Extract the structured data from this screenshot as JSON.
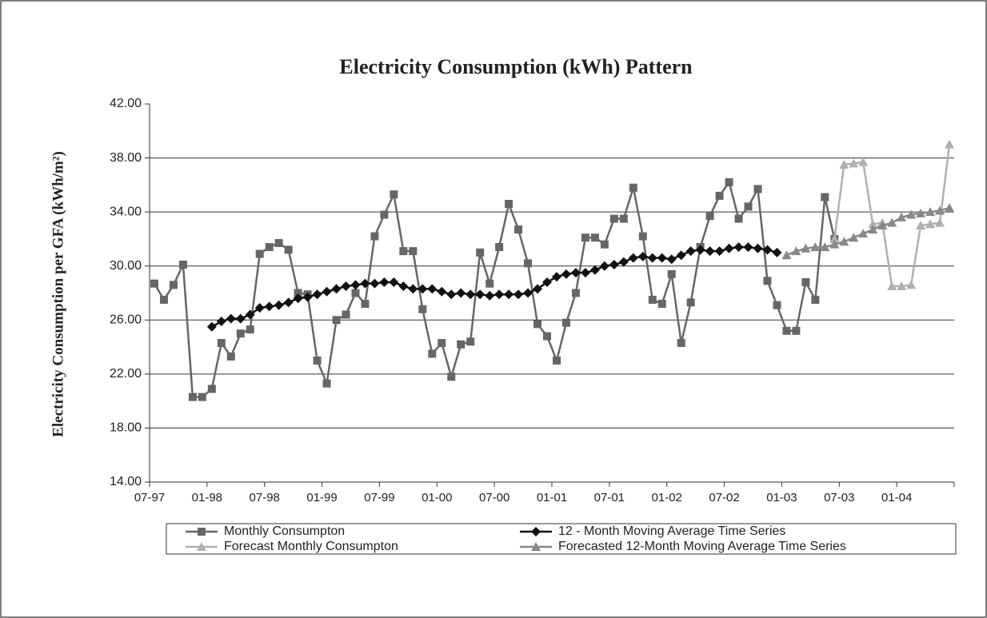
{
  "chart_data": {
    "type": "line",
    "title": "Electricity Consumption (kWh) Pattern",
    "y_label": "Electricity Consumption per GFA (kWh/m²)",
    "categories": [
      "07-97",
      null,
      null,
      null,
      null,
      null,
      "01-98",
      null,
      null,
      null,
      null,
      null,
      "07-98",
      null,
      null,
      null,
      null,
      null,
      "01-99",
      null,
      null,
      null,
      null,
      null,
      "07-99",
      null,
      null,
      null,
      null,
      null,
      "01-00",
      null,
      null,
      null,
      null,
      null,
      "07-00",
      null,
      null,
      null,
      null,
      null,
      "01-01",
      null,
      null,
      null,
      null,
      null,
      "07-01",
      null,
      null,
      null,
      null,
      null,
      "01-02",
      null,
      null,
      null,
      null,
      null,
      "07-02",
      null,
      null,
      null,
      null,
      null,
      "01-03",
      null,
      null,
      null,
      null,
      null,
      "07-03",
      null,
      null,
      null,
      null,
      null,
      "01-04",
      null,
      null,
      null,
      null,
      null
    ],
    "series": [
      {
        "name": "Monthly Consumpton",
        "color": "#666666",
        "marker": "square",
        "values": [
          28.7,
          27.5,
          28.6,
          30.1,
          20.3,
          20.3,
          20.9,
          24.3,
          23.3,
          25.0,
          25.3,
          30.9,
          31.4,
          31.7,
          31.2,
          28.0,
          27.9,
          23.0,
          21.3,
          26.0,
          26.4,
          28.0,
          27.2,
          32.2,
          33.8,
          35.3,
          31.1,
          31.1,
          26.8,
          23.5,
          24.3,
          21.8,
          24.2,
          24.4,
          31.0,
          28.7,
          31.4,
          34.6,
          32.7,
          30.2,
          25.7,
          24.8,
          23.0,
          25.8,
          28.0,
          32.1,
          32.1,
          31.6,
          33.5,
          33.5,
          35.8,
          32.2,
          27.5,
          27.2,
          29.4,
          24.3,
          27.3,
          31.4,
          33.7,
          35.2,
          36.2,
          33.5,
          34.4,
          35.7,
          28.9,
          27.1,
          25.2,
          25.2,
          28.8,
          27.5,
          35.1,
          32.0,
          null,
          null,
          null,
          null,
          null,
          null,
          null,
          null,
          null,
          null,
          null,
          null
        ]
      },
      {
        "name": "12 - Month Moving Average Time Series",
        "color": "#111111",
        "marker": "diamond",
        "values": [
          null,
          null,
          null,
          null,
          null,
          null,
          25.5,
          25.9,
          26.1,
          26.1,
          26.4,
          26.9,
          27.0,
          27.1,
          27.3,
          27.6,
          27.7,
          27.9,
          28.1,
          28.3,
          28.5,
          28.6,
          28.7,
          28.7,
          28.8,
          28.8,
          28.5,
          28.3,
          28.3,
          28.3,
          28.1,
          27.9,
          28.0,
          27.9,
          27.9,
          27.8,
          27.9,
          27.9,
          27.9,
          28.0,
          28.3,
          28.8,
          29.2,
          29.4,
          29.5,
          29.5,
          29.7,
          30.0,
          30.1,
          30.3,
          30.6,
          30.7,
          30.6,
          30.6,
          30.5,
          30.8,
          31.1,
          31.2,
          31.1,
          31.1,
          31.3,
          31.4,
          31.4,
          31.3,
          31.2,
          31.0,
          null,
          null,
          null,
          null,
          null,
          null,
          null,
          null,
          null,
          null,
          null,
          null,
          null,
          null,
          null,
          null,
          null,
          null
        ]
      },
      {
        "name": "Forecast Monthly Consumpton",
        "color": "#b0b0b0",
        "marker": "triangle",
        "values": [
          null,
          null,
          null,
          null,
          null,
          null,
          null,
          null,
          null,
          null,
          null,
          null,
          null,
          null,
          null,
          null,
          null,
          null,
          null,
          null,
          null,
          null,
          null,
          null,
          null,
          null,
          null,
          null,
          null,
          null,
          null,
          null,
          null,
          null,
          null,
          null,
          null,
          null,
          null,
          null,
          null,
          null,
          null,
          null,
          null,
          null,
          null,
          null,
          null,
          null,
          null,
          null,
          null,
          null,
          null,
          null,
          null,
          null,
          null,
          null,
          null,
          null,
          null,
          null,
          null,
          null,
          null,
          null,
          null,
          null,
          null,
          32.0,
          37.5,
          37.6,
          37.7,
          33.1,
          33.2,
          28.5,
          28.5,
          28.6,
          33.0,
          33.1,
          33.2,
          39.0
        ]
      },
      {
        "name": "Forecasted 12-Month Moving Average Time Series",
        "color": "#888888",
        "marker": "triangle",
        "values": [
          null,
          null,
          null,
          null,
          null,
          null,
          null,
          null,
          null,
          null,
          null,
          null,
          null,
          null,
          null,
          null,
          null,
          null,
          null,
          null,
          null,
          null,
          null,
          null,
          null,
          null,
          null,
          null,
          null,
          null,
          null,
          null,
          null,
          null,
          null,
          null,
          null,
          null,
          null,
          null,
          null,
          null,
          null,
          null,
          null,
          null,
          null,
          null,
          null,
          null,
          null,
          null,
          null,
          null,
          null,
          null,
          null,
          null,
          null,
          null,
          null,
          null,
          null,
          null,
          null,
          null,
          30.8,
          31.1,
          31.3,
          31.4,
          31.4,
          31.6,
          31.8,
          32.1,
          32.4,
          32.7,
          33.0,
          33.2,
          33.6,
          33.8,
          33.9,
          34.0,
          34.1,
          34.3
        ]
      }
    ],
    "ylim": [
      14,
      42
    ],
    "yticks": [
      {
        "value": 14,
        "label": "14.00"
      },
      {
        "value": 18,
        "label": "18.00"
      },
      {
        "value": 22,
        "label": "22.00"
      },
      {
        "value": 26,
        "label": "26.00"
      },
      {
        "value": 30,
        "label": "30.00"
      },
      {
        "value": 34,
        "label": "34.00"
      },
      {
        "value": 38,
        "label": "38.00"
      },
      {
        "value": 42,
        "label": "42.00"
      }
    ],
    "grid": true,
    "legend": "bottom"
  }
}
